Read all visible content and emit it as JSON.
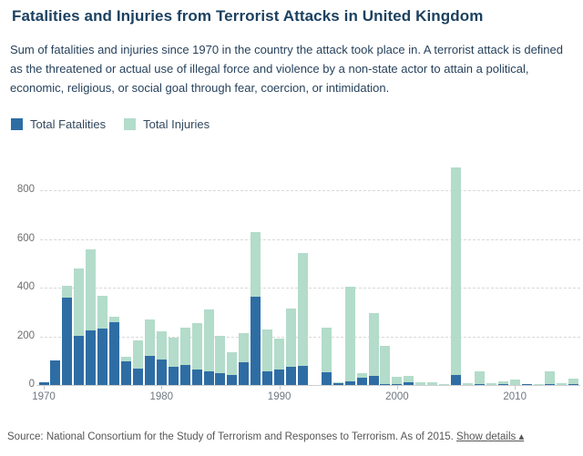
{
  "header": {
    "title": "Fatalities and Injuries from Terrorist Attacks in United Kingdom",
    "subtitle": "Sum of fatalities and injuries since 1970 in the country the attack took place in. A terrorist attack is defined as the threatened or actual use of illegal force and violence by a non-state actor to attain a political, economic, religious, or social goal through fear, coercion, or intimidation."
  },
  "legend": [
    {
      "label": "Total Fatalities",
      "color": "#2e6da4"
    },
    {
      "label": "Total Injuries",
      "color": "#b3dcca"
    }
  ],
  "footer": {
    "source_text": "Source: National Consortium for the Study of Terrorism and Responses to Terrorism. As of 2015.",
    "link_label": "Show details ▴"
  },
  "chart_data": {
    "type": "bar",
    "stacked": true,
    "title": "Fatalities and Injuries from Terrorist Attacks in United Kingdom",
    "xlabel": "",
    "ylabel": "",
    "ylim": [
      0,
      900
    ],
    "yticks": [
      0,
      200,
      400,
      600,
      800
    ],
    "xticks": [
      1970,
      1980,
      1990,
      2000,
      2010
    ],
    "grid": "horizontal-dashed",
    "legend_position": "top-left",
    "x": [
      1970,
      1971,
      1972,
      1973,
      1974,
      1975,
      1976,
      1977,
      1978,
      1979,
      1980,
      1981,
      1982,
      1983,
      1984,
      1985,
      1986,
      1987,
      1988,
      1989,
      1990,
      1991,
      1992,
      1993,
      1994,
      1995,
      1996,
      1997,
      1998,
      1999,
      2000,
      2001,
      2002,
      2003,
      2004,
      2005,
      2006,
      2007,
      2008,
      2009,
      2010,
      2011,
      2012,
      2013,
      2014,
      2015
    ],
    "series": [
      {
        "name": "Total Fatalities",
        "color": "#2e6da4",
        "values": [
          13,
          100,
          360,
          200,
          226,
          231,
          259,
          97,
          67,
          120,
          103,
          76,
          84,
          63,
          55,
          48,
          42,
          92,
          362,
          55,
          64,
          74,
          79,
          0,
          52,
          8,
          15,
          29,
          38,
          5,
          4,
          12,
          1,
          1,
          1,
          42,
          0,
          2,
          0,
          3,
          1,
          2,
          1,
          4,
          0,
          2
        ]
      },
      {
        "name": "Total Injuries",
        "color": "#b3dcca",
        "values": [
          0,
          0,
          48,
          280,
          331,
          134,
          21,
          18,
          118,
          148,
          119,
          117,
          153,
          192,
          254,
          155,
          91,
          120,
          267,
          173,
          125,
          241,
          462,
          0,
          182,
          4,
          387,
          20,
          258,
          155,
          30,
          24,
          10,
          10,
          3,
          850,
          7,
          54,
          6,
          11,
          20,
          2,
          4,
          51,
          8,
          24
        ]
      }
    ]
  }
}
